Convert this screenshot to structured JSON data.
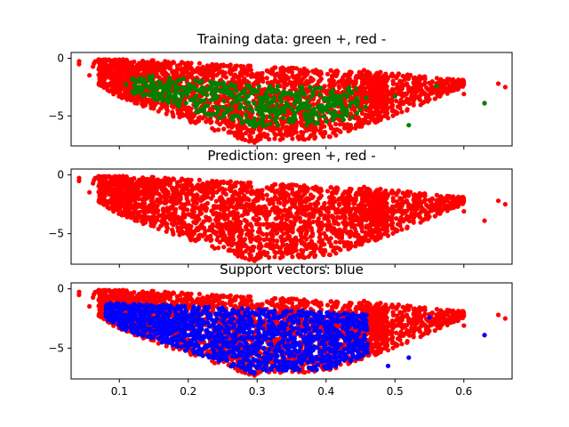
{
  "chart_data": [
    {
      "type": "scatter",
      "title": "Training data: green +, red -",
      "xlim": [
        0.03,
        0.67
      ],
      "ylim": [
        -7.6,
        0.5
      ],
      "yticks": [
        0,
        -5
      ],
      "ytick_labels": [
        "0",
        "−5"
      ],
      "show_xtick_labels": false,
      "series": [
        {
          "color": "#ff0000",
          "role": "negative"
        },
        {
          "color": "#008000",
          "role": "positive"
        }
      ]
    },
    {
      "type": "scatter",
      "title": "Prediction: green +, red -",
      "xlim": [
        0.03,
        0.67
      ],
      "ylim": [
        -7.6,
        0.5
      ],
      "yticks": [
        0,
        -5
      ],
      "ytick_labels": [
        "0",
        "−5"
      ],
      "show_xtick_labels": false,
      "series": [
        {
          "color": "#ff0000",
          "role": "predicted negative"
        }
      ]
    },
    {
      "type": "scatter",
      "title": "Support vectors: blue",
      "xlim": [
        0.03,
        0.67
      ],
      "ylim": [
        -7.6,
        0.5
      ],
      "yticks": [
        0,
        -5
      ],
      "ytick_labels": [
        "0",
        "−5"
      ],
      "xticks": [
        0.1,
        0.2,
        0.3,
        0.4,
        0.5,
        0.6
      ],
      "xtick_labels": [
        "0.1",
        "0.2",
        "0.3",
        "0.4",
        "0.5",
        "0.6"
      ],
      "show_xtick_labels": true,
      "series": [
        {
          "color": "#ff0000",
          "role": "data"
        },
        {
          "color": "#0000ff",
          "role": "support vectors"
        }
      ]
    }
  ]
}
